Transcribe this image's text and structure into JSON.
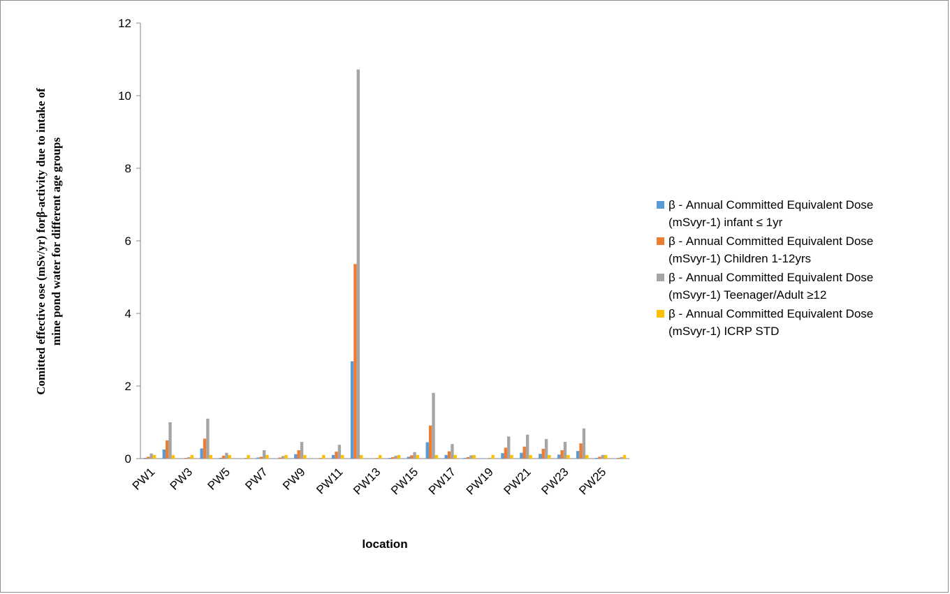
{
  "chart_data": {
    "type": "bar",
    "title": "",
    "xlabel": "location",
    "ylabel_lines": [
      "Comitted effective ose (mSv/yr) forβ-activity due to intake of",
      "mine pond water for different age groups"
    ],
    "ylim": [
      0,
      12
    ],
    "yticks": [
      "0",
      "2",
      "4",
      "6",
      "8",
      "10",
      "12"
    ],
    "grid": false,
    "legend_position": "right",
    "categories": [
      "PW1",
      "PW2",
      "PW3",
      "PW4",
      "PW5",
      "PW6",
      "PW7",
      "PW8",
      "PW9",
      "PW10",
      "PW11",
      "PW12",
      "PW13",
      "PW14",
      "PW15",
      "PW16",
      "PW17",
      "PW18",
      "PW19",
      "PW20",
      "PW21",
      "PW22",
      "PW23",
      "PW24",
      "PW25",
      "PW26"
    ],
    "xtick_labels": [
      "PW1",
      "",
      "PW3",
      "",
      "PW5",
      "",
      "PW7",
      "",
      "PW9",
      "",
      "PW11",
      "",
      "PW13",
      "",
      "PW15",
      "",
      "PW17",
      "",
      "PW19",
      "",
      "PW21",
      "",
      "PW23",
      "",
      "PW25",
      ""
    ],
    "series": [
      {
        "name": "β - Annual Committed Equivalent Dose (mSvyr-1) infant ≤ 1yr",
        "legend_lines": [
          "β - Annual Committed Equivalent Dose",
          "(mSvyr-1) infant ≤ 1yr"
        ],
        "color": "#5b9bd5",
        "values": [
          0.02,
          0.25,
          0.01,
          0.28,
          0.02,
          0.01,
          0.03,
          0.01,
          0.12,
          0.01,
          0.1,
          2.68,
          0.01,
          0.02,
          0.05,
          0.45,
          0.1,
          0.02,
          0.01,
          0.15,
          0.16,
          0.13,
          0.11,
          0.21,
          0.02,
          0.01
        ]
      },
      {
        "name": "β - Annual Committed Equivalent Dose (mSvyr-1) Children 1-12yrs",
        "legend_lines": [
          "β - Annual Committed Equivalent Dose",
          "(mSvyr-1) Children 1-12yrs"
        ],
        "color": "#ed7d31",
        "values": [
          0.05,
          0.5,
          0.02,
          0.55,
          0.08,
          0.01,
          0.05,
          0.03,
          0.23,
          0.01,
          0.19,
          5.36,
          0.01,
          0.04,
          0.09,
          0.91,
          0.2,
          0.04,
          0.01,
          0.3,
          0.33,
          0.27,
          0.23,
          0.42,
          0.05,
          0.02
        ]
      },
      {
        "name": "β - Annual Committed Equivalent Dose (mSvyr-1) Teenager/Adult ≥12",
        "legend_lines": [
          "β - Annual Committed Equivalent Dose",
          "(mSvyr-1) Teenager/Adult ≥12"
        ],
        "color": "#a5a5a5",
        "values": [
          0.14,
          1.0,
          0.04,
          1.1,
          0.16,
          0.02,
          0.23,
          0.07,
          0.46,
          0.02,
          0.38,
          10.72,
          0.02,
          0.08,
          0.18,
          1.81,
          0.4,
          0.09,
          0.02,
          0.61,
          0.66,
          0.54,
          0.46,
          0.83,
          0.1,
          0.04
        ]
      },
      {
        "name": "β - Annual Committed Equivalent Dose (mSvyr-1) ICRP STD",
        "legend_lines": [
          "β - Annual Committed Equivalent Dose",
          "(mSvyr-1) ICRP STD"
        ],
        "color": "#ffc000",
        "values": [
          0.1,
          0.1,
          0.1,
          0.1,
          0.1,
          0.1,
          0.1,
          0.1,
          0.1,
          0.1,
          0.1,
          0.1,
          0.1,
          0.1,
          0.1,
          0.1,
          0.1,
          0.1,
          0.1,
          0.1,
          0.1,
          0.1,
          0.1,
          0.1,
          0.1,
          0.1
        ]
      }
    ]
  }
}
